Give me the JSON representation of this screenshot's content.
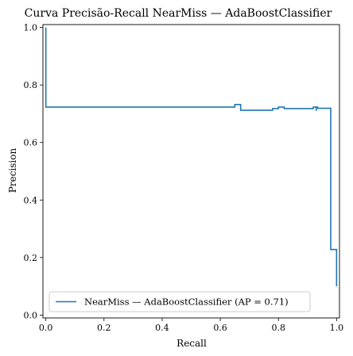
{
  "chart_data": {
    "type": "line",
    "title": "Curva Precisão-Recall NearMiss — AdaBoostClassifier",
    "xlabel": "Recall",
    "ylabel": "Precision",
    "xlim": [
      -0.01,
      1.01
    ],
    "ylim": [
      -0.01,
      1.01
    ],
    "xticks": [
      "0.0",
      "0.2",
      "0.4",
      "0.6",
      "0.8",
      "1.0"
    ],
    "yticks": [
      "0.0",
      "0.2",
      "0.4",
      "0.6",
      "0.8",
      "1.0"
    ],
    "grid": false,
    "legend_position": "lower left",
    "series": [
      {
        "name": "NearMiss — AdaBoostClassifier (AP = 0.71)",
        "color": "#1f77b4",
        "step": "post",
        "x": [
          0.0,
          0.0,
          0.0,
          0.65,
          0.67,
          0.78,
          0.8,
          0.82,
          0.92,
          0.93,
          0.93,
          0.935,
          0.98,
          0.98,
          1.0,
          1.0
        ],
        "y": [
          1.0,
          0.723,
          0.723,
          0.732,
          0.712,
          0.718,
          0.723,
          0.718,
          0.723,
          0.71,
          0.723,
          0.719,
          0.228,
          0.228,
          0.1,
          0.1
        ]
      }
    ]
  }
}
